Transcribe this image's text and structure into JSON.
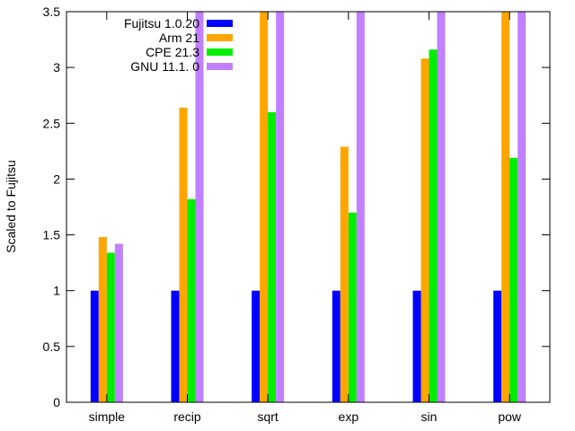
{
  "chart_data": {
    "type": "bar",
    "title": "",
    "xlabel": "",
    "ylabel": "Scaled to Fujitsu",
    "ylim": [
      0,
      3.5
    ],
    "yticks": [
      "0",
      "0.5",
      "1",
      "1.5",
      "2",
      "2.5",
      "3",
      "3.5"
    ],
    "categories": [
      "simple",
      "recip",
      "sqrt",
      "exp",
      "sin",
      "pow"
    ],
    "series": [
      {
        "name": "Fujitsu 1.0.20",
        "color": "#0000ff",
        "values": [
          1,
          1,
          1,
          1,
          1,
          1
        ]
      },
      {
        "name": "Arm 21",
        "color": "#ffa500",
        "values": [
          1.48,
          2.64,
          3.5,
          2.29,
          3.08,
          3.5
        ]
      },
      {
        "name": "CPE 21.3",
        "color": "#00ee00",
        "values": [
          1.34,
          1.82,
          2.6,
          1.7,
          3.16,
          2.19
        ]
      },
      {
        "name": "GNU 11.1. 0",
        "color": "#c080ff",
        "values": [
          1.42,
          3.5,
          3.5,
          3.5,
          3.5,
          3.5
        ]
      }
    ],
    "grid": false,
    "legend_position": "top-left"
  }
}
